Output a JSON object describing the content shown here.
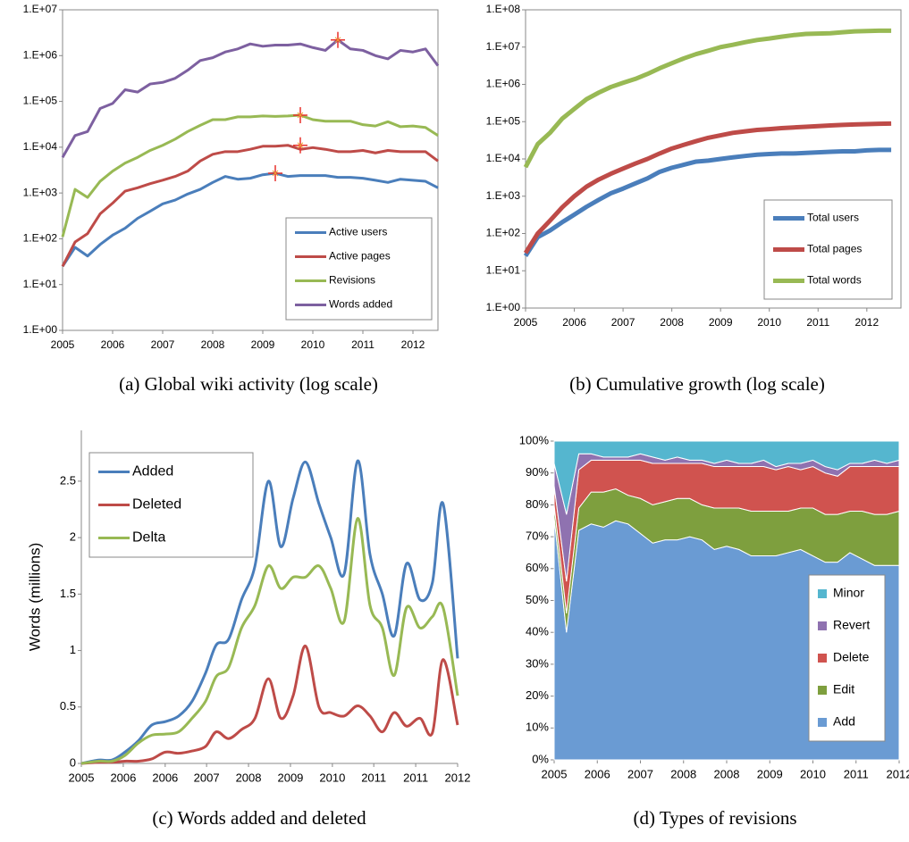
{
  "chart_data": [
    {
      "type": "line",
      "title": "(a) Global wiki activity (log scale)",
      "log_scale": true,
      "legend": "lower right",
      "x": [
        2005,
        2005.25,
        2005.5,
        2005.75,
        2006,
        2006.25,
        2006.5,
        2006.75,
        2007,
        2007.25,
        2007.5,
        2007.75,
        2008,
        2008.25,
        2008.5,
        2008.75,
        2009,
        2009.25,
        2009.5,
        2009.75,
        2010,
        2010.25,
        2010.5,
        2010.75,
        2011,
        2011.25,
        2011.5,
        2011.75,
        2012,
        2012.25,
        2012.5
      ],
      "xlim": [
        2005,
        2012.5
      ],
      "xticks": [
        2005,
        2006,
        2007,
        2008,
        2009,
        2010,
        2011,
        2012
      ],
      "ylim": [
        1,
        10000000
      ],
      "yticks": [
        {
          "value": 1,
          "label": "1.E+00"
        },
        {
          "value": 10,
          "label": "1.E+01"
        },
        {
          "value": 100,
          "label": "1.E+02"
        },
        {
          "value": 1000,
          "label": "1.E+03"
        },
        {
          "value": 10000,
          "label": "1.E+04"
        },
        {
          "value": 100000,
          "label": "1.E+05"
        },
        {
          "value": 1000000,
          "label": "1.E+06"
        },
        {
          "value": 10000000,
          "label": "1.E+07"
        }
      ],
      "series": [
        {
          "name": "Active users",
          "color": "#4a7ebb",
          "values": [
            25,
            65,
            42,
            75,
            120,
            170,
            280,
            400,
            580,
            700,
            950,
            1200,
            1700,
            2300,
            2000,
            2100,
            2500,
            2700,
            2300,
            2400,
            2400,
            2400,
            2200,
            2200,
            2100,
            1900,
            1700,
            2000,
            1900,
            1800,
            1300
          ]
        },
        {
          "name": "Active pages",
          "color": "#be4b48",
          "values": [
            25,
            85,
            130,
            350,
            600,
            1100,
            1300,
            1600,
            1900,
            2300,
            3000,
            5000,
            7000,
            8000,
            8000,
            9000,
            10500,
            10500,
            11000,
            9000,
            9800,
            9000,
            8000,
            8000,
            8500,
            7500,
            8500,
            8000,
            8000,
            8000,
            5000
          ]
        },
        {
          "name": "Revisions",
          "color": "#98b954",
          "values": [
            110,
            1200,
            800,
            1800,
            3000,
            4500,
            6000,
            8500,
            11000,
            15000,
            22000,
            30000,
            40000,
            40000,
            46000,
            46000,
            48000,
            47000,
            48000,
            50000,
            40000,
            37000,
            37000,
            37000,
            31000,
            29000,
            36000,
            28000,
            29000,
            27000,
            18000
          ]
        },
        {
          "name": "Words added",
          "color": "#7d60a0",
          "values": [
            6000,
            18000,
            22000,
            70000,
            90000,
            180000,
            160000,
            240000,
            260000,
            320000,
            480000,
            780000,
            900000,
            1200000,
            1400000,
            1800000,
            1600000,
            1700000,
            1700000,
            1800000,
            1500000,
            1300000,
            2200000,
            1400000,
            1300000,
            1000000,
            850000,
            1300000,
            1200000,
            1400000,
            600000
          ]
        }
      ],
      "highlights": [
        {
          "x": 2009.25,
          "y": 2700
        },
        {
          "x": 2009.75,
          "y": 11000
        },
        {
          "x": 2009.75,
          "y": 50000
        },
        {
          "x": 2010.5,
          "y": 2200000
        }
      ]
    },
    {
      "type": "line",
      "title": "(b) Cumulative growth (log scale)",
      "log_scale": true,
      "legend": "lower right",
      "x": [
        2005,
        2005.25,
        2005.5,
        2005.75,
        2006,
        2006.25,
        2006.5,
        2006.75,
        2007,
        2007.25,
        2007.5,
        2007.75,
        2008,
        2008.25,
        2008.5,
        2008.75,
        2009,
        2009.25,
        2009.5,
        2009.75,
        2010,
        2010.25,
        2010.5,
        2010.75,
        2011,
        2011.25,
        2011.5,
        2011.75,
        2012,
        2012.25,
        2012.5
      ],
      "xlim": [
        2005,
        2012.7
      ],
      "xticks": [
        2005,
        2006,
        2007,
        2008,
        2009,
        2010,
        2011,
        2012
      ],
      "ylim": [
        1,
        100000000
      ],
      "yticks": [
        {
          "value": 1,
          "label": "1.E+00"
        },
        {
          "value": 10,
          "label": "1.E+01"
        },
        {
          "value": 100,
          "label": "1.E+02"
        },
        {
          "value": 1000,
          "label": "1.E+03"
        },
        {
          "value": 10000,
          "label": "1.E+04"
        },
        {
          "value": 100000,
          "label": "1.E+05"
        },
        {
          "value": 1000000,
          "label": "1.E+06"
        },
        {
          "value": 10000000,
          "label": "1.E+07"
        },
        {
          "value": 100000000,
          "label": "1.E+08"
        }
      ],
      "series": [
        {
          "name": "Total users",
          "color": "#4a7ebb",
          "values": [
            25,
            80,
            120,
            200,
            320,
            520,
            800,
            1200,
            1600,
            2200,
            3000,
            4500,
            5800,
            7000,
            8500,
            9000,
            10000,
            11000,
            12000,
            13000,
            13500,
            14000,
            14000,
            14500,
            15000,
            15500,
            16000,
            16000,
            17000,
            17500,
            17500
          ]
        },
        {
          "name": "Total pages",
          "color": "#be4b48",
          "values": [
            30,
            100,
            220,
            500,
            1000,
            1800,
            2800,
            4000,
            5500,
            7500,
            10000,
            14000,
            19000,
            24000,
            30000,
            37000,
            43000,
            50000,
            55000,
            60000,
            63000,
            67000,
            70000,
            73000,
            76000,
            79000,
            82000,
            84000,
            86000,
            88000,
            89000
          ]
        },
        {
          "name": "Total words",
          "color": "#98b954",
          "values": [
            6000,
            25000,
            50000,
            120000,
            220000,
            400000,
            600000,
            850000,
            1100000,
            1400000,
            1900000,
            2700000,
            3700000,
            5000000,
            6500000,
            8000000,
            10000000,
            11500000,
            13500000,
            15500000,
            17000000,
            19000000,
            21000000,
            22500000,
            23000000,
            23500000,
            25000000,
            26500000,
            27000000,
            27500000,
            27500000
          ]
        }
      ]
    },
    {
      "type": "line",
      "title": "(c) Words added and deleted",
      "ylabel": "Words (millions)",
      "smooth": true,
      "legend": "upper left",
      "x": [
        2005,
        2005.32,
        2005.57,
        2005.81,
        2006.06,
        2006.31,
        2006.56,
        2006.81,
        2007.06,
        2007.31,
        2007.51,
        2007.74,
        2007.98,
        2008.23,
        2008.48,
        2008.71,
        2008.94,
        2009.17,
        2009.42,
        2009.64,
        2009.89,
        2010.14,
        2010.37,
        2010.6,
        2010.82,
        2011.05,
        2011.3,
        2011.53,
        2011.73,
        2012
      ],
      "xlim": [
        2005,
        2012
      ],
      "xticks": [
        {
          "value": 2005,
          "label": "2005"
        },
        {
          "value": 2005.78,
          "label": "2006"
        },
        {
          "value": 2006.56,
          "label": "2006"
        },
        {
          "value": 2007.33,
          "label": "2007"
        },
        {
          "value": 2008.11,
          "label": "2008"
        },
        {
          "value": 2008.89,
          "label": "2009"
        },
        {
          "value": 2009.67,
          "label": "2010"
        },
        {
          "value": 2010.44,
          "label": "2011"
        },
        {
          "value": 2011.22,
          "label": "2011"
        },
        {
          "value": 2012,
          "label": "2012"
        }
      ],
      "ylim": [
        0,
        2.95
      ],
      "yticks": [
        0,
        0.5,
        1,
        1.5,
        2,
        2.5
      ],
      "series": [
        {
          "name": "Added",
          "color": "#4a7ebb",
          "values": [
            0,
            0.03,
            0.03,
            0.1,
            0.2,
            0.34,
            0.37,
            0.42,
            0.55,
            0.8,
            1.05,
            1.1,
            1.45,
            1.75,
            2.5,
            1.92,
            2.35,
            2.67,
            2.3,
            2,
            1.68,
            2.68,
            1.85,
            1.5,
            1.13,
            1.77,
            1.45,
            1.6,
            2.3,
            0.93
          ]
        },
        {
          "name": "Deleted",
          "color": "#be4b48",
          "values": [
            0,
            0.01,
            0.01,
            0.02,
            0.02,
            0.04,
            0.1,
            0.09,
            0.11,
            0.15,
            0.28,
            0.22,
            0.3,
            0.4,
            0.75,
            0.4,
            0.6,
            1.04,
            0.5,
            0.45,
            0.42,
            0.51,
            0.42,
            0.28,
            0.45,
            0.33,
            0.4,
            0.27,
            0.92,
            0.34
          ]
        },
        {
          "name": "Delta",
          "color": "#98b954",
          "values": [
            0,
            0.02,
            0.02,
            0.07,
            0.18,
            0.25,
            0.26,
            0.28,
            0.4,
            0.55,
            0.77,
            0.85,
            1.2,
            1.4,
            1.75,
            1.55,
            1.65,
            1.65,
            1.75,
            1.55,
            1.26,
            2.17,
            1.4,
            1.2,
            0.78,
            1.38,
            1.2,
            1.3,
            1.38,
            0.6
          ]
        }
      ]
    },
    {
      "type": "stacked_area",
      "title": "(d) Types of revisions",
      "legend": "lower right",
      "x": [
        2005,
        2005.25,
        2005.5,
        2005.75,
        2006,
        2006.25,
        2006.5,
        2006.75,
        2007,
        2007.25,
        2007.5,
        2007.75,
        2008,
        2008.25,
        2008.5,
        2008.75,
        2009,
        2009.25,
        2009.5,
        2009.75,
        2010,
        2010.25,
        2010.5,
        2010.75,
        2011,
        2011.25,
        2011.5,
        2011.75,
        2012
      ],
      "xlim": [
        2005,
        2012
      ],
      "xticks": [
        {
          "value": 2005,
          "label": "2005"
        },
        {
          "value": 2005.875,
          "label": "2006"
        },
        {
          "value": 2006.75,
          "label": "2007"
        },
        {
          "value": 2007.625,
          "label": "2008"
        },
        {
          "value": 2008.5,
          "label": "2008"
        },
        {
          "value": 2009.375,
          "label": "2009"
        },
        {
          "value": 2010.25,
          "label": "2010"
        },
        {
          "value": 2011.125,
          "label": "2011"
        },
        {
          "value": 2012,
          "label": "2012"
        }
      ],
      "ylim": [
        0,
        100
      ],
      "yticks": [
        {
          "value": 0,
          "label": "0%"
        },
        {
          "value": 10,
          "label": "10%"
        },
        {
          "value": 20,
          "label": "20%"
        },
        {
          "value": 30,
          "label": "30%"
        },
        {
          "value": 40,
          "label": "40%"
        },
        {
          "value": 50,
          "label": "50%"
        },
        {
          "value": 60,
          "label": "60%"
        },
        {
          "value": 70,
          "label": "70%"
        },
        {
          "value": 80,
          "label": "80%"
        },
        {
          "value": 90,
          "label": "90%"
        },
        {
          "value": 100,
          "label": "100%"
        }
      ],
      "series": [
        {
          "name": "Add",
          "color": "#6a9bd3",
          "values": [
            76,
            40,
            72,
            74,
            73,
            75,
            74,
            71,
            68,
            69,
            69,
            70,
            69,
            66,
            67,
            66,
            64,
            64,
            64,
            65,
            66,
            64,
            62,
            62,
            65,
            63,
            61,
            61,
            61
          ]
        },
        {
          "name": "Edit",
          "color": "#7e9f3e",
          "values": [
            4,
            6,
            7,
            10,
            11,
            10,
            9,
            11,
            12,
            12,
            13,
            12,
            11,
            13,
            12,
            13,
            14,
            14,
            14,
            13,
            13,
            15,
            15,
            15,
            13,
            15,
            16,
            16,
            17
          ]
        },
        {
          "name": "Delete",
          "color": "#d0534f",
          "values": [
            6,
            10,
            12,
            10,
            10,
            9,
            11,
            12,
            13,
            12,
            11,
            11,
            13,
            13,
            13,
            13,
            14,
            14,
            13,
            14,
            12,
            13,
            13,
            12,
            14,
            14,
            15,
            15,
            14
          ]
        },
        {
          "name": "Revert",
          "color": "#8f72b0",
          "values": [
            7,
            21,
            5,
            2,
            1,
            1,
            1,
            2,
            2,
            1,
            2,
            1,
            1,
            1,
            2,
            1,
            1,
            2,
            1,
            1,
            2,
            2,
            2,
            2,
            1,
            1,
            2,
            1,
            2
          ]
        },
        {
          "name": "Minor",
          "color": "#55b6cf",
          "values": [
            7,
            23,
            4,
            4,
            5,
            5,
            5,
            4,
            5,
            6,
            5,
            6,
            6,
            7,
            6,
            7,
            7,
            6,
            8,
            7,
            7,
            6,
            8,
            9,
            7,
            7,
            6,
            7,
            6
          ]
        }
      ]
    }
  ]
}
